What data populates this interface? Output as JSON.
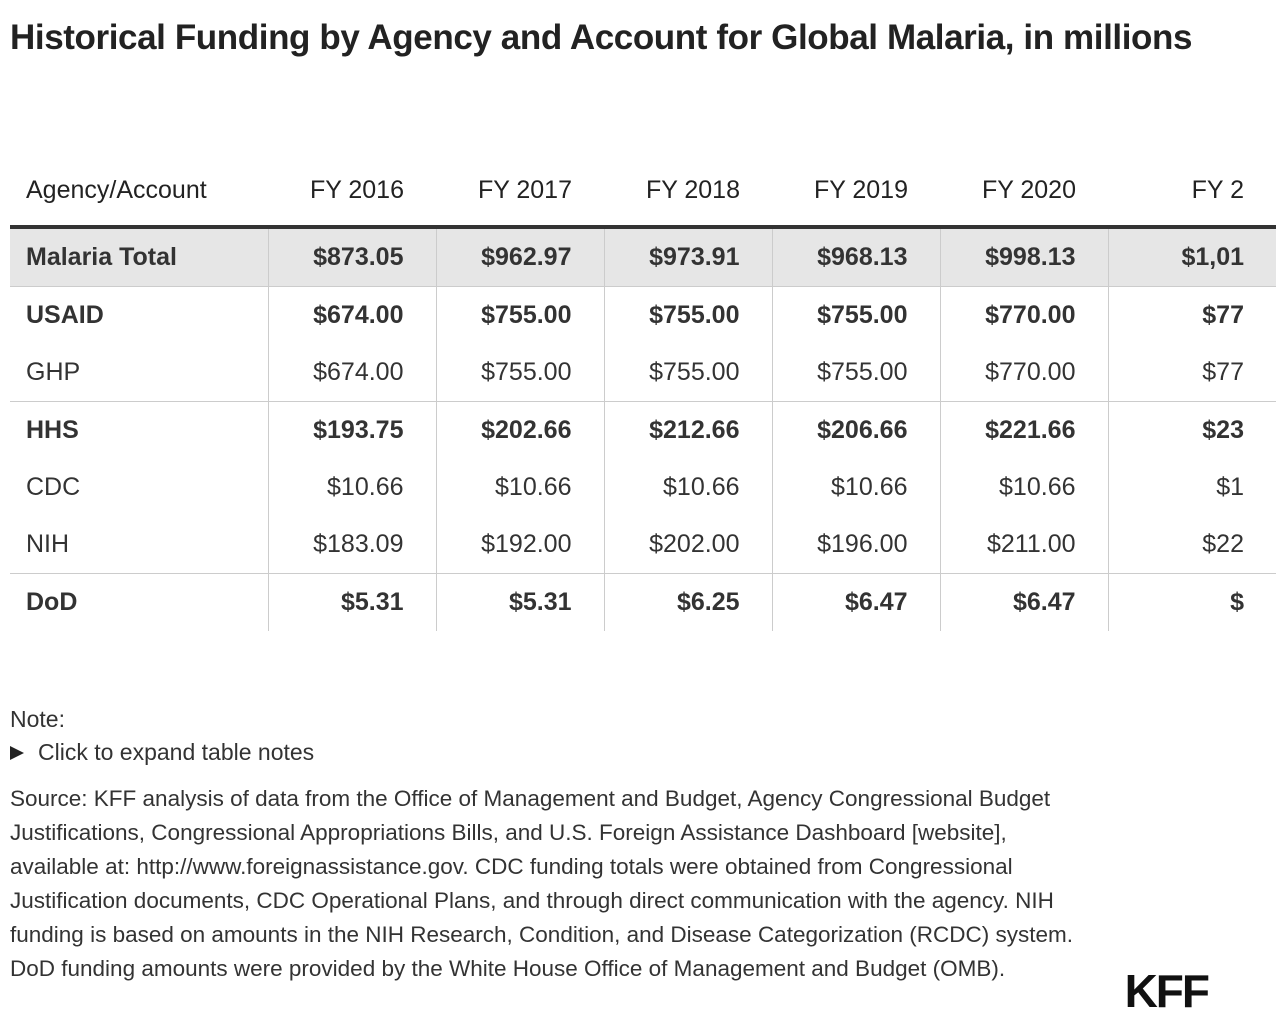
{
  "title": "Historical Funding by Agency and Account for Global Malaria, in millions",
  "table": {
    "header": [
      "Agency/Account",
      "FY 2016",
      "FY 2017",
      "FY 2018",
      "FY 2019",
      "FY 2020",
      "FY 2"
    ],
    "rows": [
      [
        "Malaria Total",
        "$873.05",
        "$962.97",
        "$973.91",
        "$968.13",
        "$998.13",
        "$1,01"
      ],
      [
        "USAID",
        "$674.00",
        "$755.00",
        "$755.00",
        "$755.00",
        "$770.00",
        "$77"
      ],
      [
        "GHP",
        "$674.00",
        "$755.00",
        "$755.00",
        "$755.00",
        "$770.00",
        "$77"
      ],
      [
        "HHS",
        "$193.75",
        "$202.66",
        "$212.66",
        "$206.66",
        "$221.66",
        "$23"
      ],
      [
        "CDC",
        "$10.66",
        "$10.66",
        "$10.66",
        "$10.66",
        "$10.66",
        "$1"
      ],
      [
        "NIH",
        "$183.09",
        "$192.00",
        "$202.00",
        "$196.00",
        "$211.00",
        "$22"
      ],
      [
        "DoD",
        "$5.31",
        "$5.31",
        "$6.25",
        "$6.47",
        "$6.47",
        "$"
      ]
    ]
  },
  "note": {
    "label": "Note:",
    "toggle": "Click to expand table notes"
  },
  "source": "Source: KFF analysis of data from the Office of Management and Budget, Agency Congressional Budget Justifications, Congressional Appropriations Bills, and U.S. Foreign Assistance Dashboard [website], available at: http://www.foreignassistance.gov. CDC funding totals were obtained from Congressional Justification documents, CDC Operational Plans, and through direct communication with the agency. NIH funding is based on amounts in the NIH Research, Condition, and Disease Categorization (RCDC) system. DoD funding amounts were provided by the White House Office of Management and Budget (OMB).",
  "logo": "KFF"
}
